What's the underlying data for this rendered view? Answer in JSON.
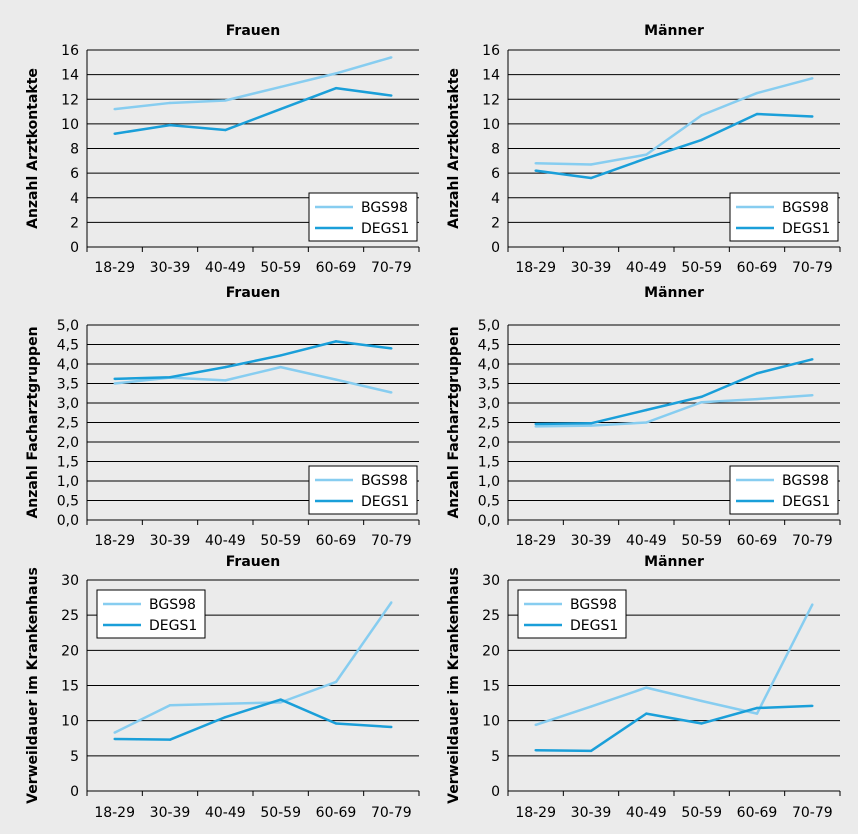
{
  "colors": {
    "bgs98": "#87cdf0",
    "degs1": "#1a9fd9",
    "grid": "#000000",
    "background": "#ebebeb"
  },
  "chart_data": [
    {
      "type": "line",
      "title": "Frauen",
      "ylabel": "Anzahl Arztkontakte",
      "categories": [
        "18-29",
        "30-39",
        "40-49",
        "50-59",
        "60-69",
        "70-79"
      ],
      "ylim": [
        0,
        16
      ],
      "yticks": [
        "0",
        "2",
        "4",
        "6",
        "8",
        "10",
        "12",
        "14",
        "16"
      ],
      "grid": true,
      "legend": "bottom-right",
      "series": [
        {
          "name": "BGS98",
          "values": [
            11.2,
            11.7,
            11.9,
            13.0,
            14.1,
            15.4
          ]
        },
        {
          "name": "DEGS1",
          "values": [
            9.2,
            9.9,
            9.5,
            11.2,
            12.9,
            12.3
          ]
        }
      ]
    },
    {
      "type": "line",
      "title": "Männer",
      "ylabel": "Anzahl Arztkontakte",
      "categories": [
        "18-29",
        "30-39",
        "40-49",
        "50-59",
        "60-69",
        "70-79"
      ],
      "ylim": [
        0,
        16
      ],
      "yticks": [
        "0",
        "2",
        "4",
        "6",
        "8",
        "10",
        "12",
        "14",
        "16"
      ],
      "grid": true,
      "legend": "bottom-right",
      "series": [
        {
          "name": "BGS98",
          "values": [
            6.8,
            6.7,
            7.5,
            10.7,
            12.5,
            13.7
          ]
        },
        {
          "name": "DEGS1",
          "values": [
            6.2,
            5.6,
            7.2,
            8.7,
            10.8,
            10.6
          ]
        }
      ]
    },
    {
      "type": "line",
      "title": "Frauen",
      "ylabel": "Anzahl Facharztgruppen",
      "categories": [
        "18-29",
        "30-39",
        "40-49",
        "50-59",
        "60-69",
        "70-79"
      ],
      "ylim": [
        0,
        5
      ],
      "yticks": [
        "0,0",
        "0,5",
        "1,0",
        "1,5",
        "2,0",
        "2,5",
        "3,0",
        "3,5",
        "4,0",
        "4,5",
        "5,0"
      ],
      "grid": true,
      "legend": "bottom-right",
      "series": [
        {
          "name": "BGS98",
          "values": [
            3.5,
            3.65,
            3.58,
            3.92,
            3.6,
            3.27
          ]
        },
        {
          "name": "DEGS1",
          "values": [
            3.62,
            3.66,
            3.92,
            4.22,
            4.58,
            4.4
          ]
        }
      ]
    },
    {
      "type": "line",
      "title": "Männer",
      "ylabel": "Anzahl Facharztgruppen",
      "categories": [
        "18-29",
        "30-39",
        "40-49",
        "50-59",
        "60-69",
        "70-79"
      ],
      "ylim": [
        0,
        5
      ],
      "yticks": [
        "0,0",
        "0,5",
        "1,0",
        "1,5",
        "2,0",
        "2,5",
        "3,0",
        "3,5",
        "4,0",
        "4,5",
        "5,0"
      ],
      "grid": true,
      "legend": "bottom-right",
      "series": [
        {
          "name": "BGS98",
          "values": [
            2.4,
            2.42,
            2.5,
            3.02,
            3.1,
            3.2
          ]
        },
        {
          "name": "DEGS1",
          "values": [
            2.46,
            2.48,
            2.82,
            3.16,
            3.76,
            4.12
          ]
        }
      ]
    },
    {
      "type": "line",
      "title": "Frauen",
      "ylabel": "Verweildauer im Krankenhaus",
      "categories": [
        "18-29",
        "30-39",
        "40-49",
        "50-59",
        "60-69",
        "70-79"
      ],
      "ylim": [
        0,
        30
      ],
      "yticks": [
        "0",
        "5",
        "10",
        "15",
        "20",
        "25",
        "30"
      ],
      "grid": true,
      "legend": "top-left",
      "series": [
        {
          "name": "BGS98",
          "values": [
            8.3,
            12.2,
            12.4,
            12.6,
            15.5,
            26.8
          ]
        },
        {
          "name": "DEGS1",
          "values": [
            7.4,
            7.3,
            10.5,
            13.0,
            9.6,
            9.1
          ]
        }
      ]
    },
    {
      "type": "line",
      "title": "Männer",
      "ylabel": "Verweildauer im Krankenhaus",
      "categories": [
        "18-29",
        "30-39",
        "40-49",
        "50-59",
        "60-69",
        "70-79"
      ],
      "ylim": [
        0,
        30
      ],
      "yticks": [
        "0",
        "5",
        "10",
        "15",
        "20",
        "25",
        "30"
      ],
      "grid": true,
      "legend": "top-left",
      "series": [
        {
          "name": "BGS98",
          "values": [
            9.4,
            12.0,
            14.7,
            12.8,
            11.0,
            26.5
          ]
        },
        {
          "name": "DEGS1",
          "values": [
            5.8,
            5.7,
            11.0,
            9.6,
            11.8,
            12.1
          ]
        }
      ]
    }
  ]
}
